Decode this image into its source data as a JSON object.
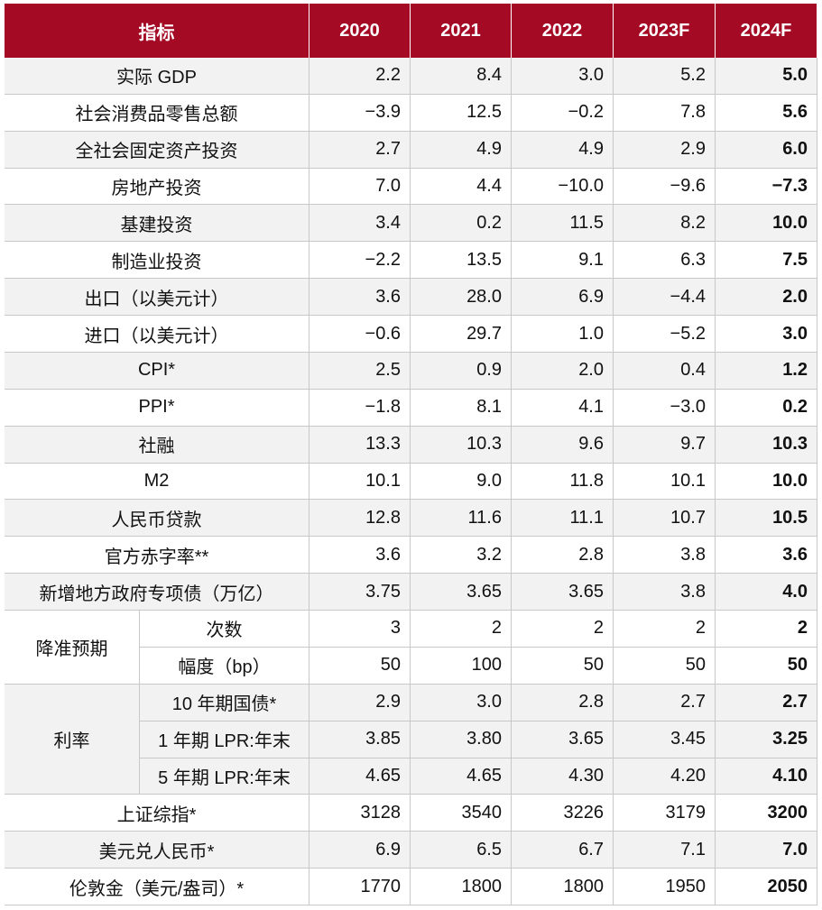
{
  "table": {
    "header": [
      "指标",
      "2020",
      "2021",
      "2022",
      "2023F",
      "2024F"
    ],
    "rows": [
      {
        "label": "实际 GDP",
        "values": [
          "2.2",
          "8.4",
          "3.0",
          "5.2",
          "5.0"
        ]
      },
      {
        "label": "社会消费品零售总额",
        "values": [
          "−3.9",
          "12.5",
          "−0.2",
          "7.8",
          "5.6"
        ]
      },
      {
        "label": "全社会固定资产投资",
        "values": [
          "2.7",
          "4.9",
          "4.9",
          "2.9",
          "6.0"
        ]
      },
      {
        "label": "房地产投资",
        "values": [
          "7.0",
          "4.4",
          "−10.0",
          "−9.6",
          "−7.3"
        ]
      },
      {
        "label": "基建投资",
        "values": [
          "3.4",
          "0.2",
          "11.5",
          "8.2",
          "10.0"
        ]
      },
      {
        "label": "制造业投资",
        "values": [
          "−2.2",
          "13.5",
          "9.1",
          "6.3",
          "7.5"
        ]
      },
      {
        "label": "出口（以美元计）",
        "values": [
          "3.6",
          "28.0",
          "6.9",
          "−4.4",
          "2.0"
        ]
      },
      {
        "label": "进口（以美元计）",
        "values": [
          "−0.6",
          "29.7",
          "1.0",
          "−5.2",
          "3.0"
        ]
      },
      {
        "label": "CPI*",
        "values": [
          "2.5",
          "0.9",
          "2.0",
          "0.4",
          "1.2"
        ]
      },
      {
        "label": "PPI*",
        "values": [
          "−1.8",
          "8.1",
          "4.1",
          "−3.0",
          "0.2"
        ]
      },
      {
        "label": "社融",
        "values": [
          "13.3",
          "10.3",
          "9.6",
          "9.7",
          "10.3"
        ]
      },
      {
        "label": "M2",
        "values": [
          "10.1",
          "9.0",
          "11.8",
          "10.1",
          "10.0"
        ]
      },
      {
        "label": "人民币贷款",
        "values": [
          "12.8",
          "11.6",
          "11.1",
          "10.7",
          "10.5"
        ]
      },
      {
        "label": "官方赤字率**",
        "values": [
          "3.6",
          "3.2",
          "2.8",
          "3.8",
          "3.6"
        ]
      },
      {
        "label": "新增地方政府专项债（万亿）",
        "values": [
          "3.75",
          "3.65",
          "3.65",
          "3.8",
          "4.0"
        ]
      },
      {
        "label": "降准预期",
        "subrows": [
          {
            "label": "次数",
            "values": [
              "3",
              "2",
              "2",
              "2",
              "2"
            ]
          },
          {
            "label": "幅度（bp）",
            "values": [
              "50",
              "100",
              "50",
              "50",
              "50"
            ]
          }
        ]
      },
      {
        "label": "利率",
        "subrows": [
          {
            "label": "10 年期国债*",
            "values": [
              "2.9",
              "3.0",
              "2.8",
              "2.7",
              "2.7"
            ]
          },
          {
            "label": "1 年期 LPR:年末",
            "values": [
              "3.85",
              "3.80",
              "3.65",
              "3.45",
              "3.25"
            ]
          },
          {
            "label": "5 年期 LPR:年末",
            "values": [
              "4.65",
              "4.65",
              "4.30",
              "4.20",
              "4.10"
            ]
          }
        ]
      },
      {
        "label": "上证综指*",
        "values": [
          "3128",
          "3540",
          "3226",
          "3179",
          "3200"
        ]
      },
      {
        "label": "美元兑人民币*",
        "values": [
          "6.9",
          "6.5",
          "6.7",
          "7.1",
          "7.0"
        ]
      },
      {
        "label": "伦敦金（美元/盎司）*",
        "values": [
          "1770",
          "1800",
          "1800",
          "1950",
          "2050"
        ]
      }
    ]
  }
}
